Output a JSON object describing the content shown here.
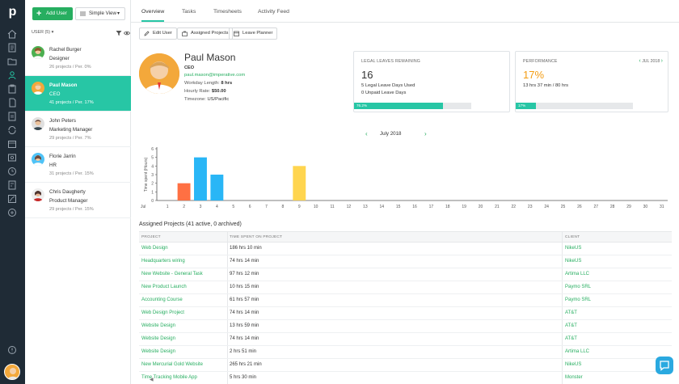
{
  "app": {
    "logo_letter": "p"
  },
  "sidebar": {
    "add_user_label": "Add User",
    "view_label": "Simple View",
    "filter_label": "USER (5)",
    "users": [
      {
        "name": "Rachel Burger",
        "role": "Designer",
        "stats": "26 projects / Per. 0%",
        "selected": false
      },
      {
        "name": "Paul Mason",
        "role": "CEO",
        "stats": "41 projects / Per. 17%",
        "selected": true
      },
      {
        "name": "John Peters",
        "role": "Marketing Manager",
        "stats": "29 projects / Per. 7%",
        "selected": false
      },
      {
        "name": "Florie Jarrin",
        "role": "HR",
        "stats": "31 projects / Per. 15%",
        "selected": false
      },
      {
        "name": "Chris Daugherty",
        "role": "Product Manager",
        "stats": "29 projects / Per. 15%",
        "selected": false
      }
    ],
    "collapse_glyph": "◀"
  },
  "tabs": [
    "Overview",
    "Tasks",
    "Timesheets",
    "Activity Feed"
  ],
  "actions": {
    "edit_user": "Edit User",
    "assigned_projects": "Assigned Projects",
    "leave_planner": "Leave Planner"
  },
  "profile": {
    "name": "Paul Mason",
    "role": "CEO",
    "email": "paul.mason@imperative.com",
    "workday_label": "Workday Length:",
    "workday_value": "8 hrs",
    "rate_label": "Hourly Rate:",
    "rate_value": "$50.00",
    "timezone_label": "Timezone:",
    "timezone_value": "US/Pacific"
  },
  "leaves_card": {
    "title": "LEGAL LEAVES REMAINING",
    "value": "16",
    "line1": "5 Legal Leave Days Used",
    "line2": "0 Unpaid Leave Days",
    "progress_label": "76.2%",
    "progress": 0.762,
    "accent": "#27c6a5"
  },
  "performance_card": {
    "title": "PERFORMANCE",
    "month": "JUL 2018",
    "value": "17%",
    "line1": "13 hrs 37 min / 80 hrs",
    "progress_label": "17%",
    "progress": 0.17,
    "accent": "#f39c12"
  },
  "month_nav": {
    "label": "July 2018",
    "prev": "‹",
    "next": "›"
  },
  "chart_data": {
    "type": "bar",
    "ylabel": "Time spent (Hours)",
    "xlabel": "",
    "month_label": "Jul",
    "categories": [
      "1",
      "2",
      "3",
      "4",
      "5",
      "6",
      "7",
      "8",
      "9",
      "10",
      "11",
      "12",
      "13",
      "14",
      "15",
      "16",
      "17",
      "18",
      "19",
      "20",
      "21",
      "22",
      "23",
      "24",
      "25",
      "26",
      "27",
      "28",
      "29",
      "30",
      "31"
    ],
    "values": [
      0,
      2,
      5,
      3,
      0,
      0,
      0,
      0,
      4,
      0,
      0,
      0,
      0,
      0,
      0,
      0,
      0,
      0,
      0,
      0,
      0,
      0,
      0,
      0,
      0,
      0,
      0,
      0,
      0,
      0,
      0
    ],
    "colors": [
      "#1abc9c",
      "#ff7043",
      "#29b6f6",
      "#29b6f6",
      "#1abc9c",
      "#1abc9c",
      "#1abc9c",
      "#1abc9c",
      "#ffd54f",
      "#1abc9c",
      "#1abc9c",
      "#1abc9c",
      "#1abc9c",
      "#1abc9c",
      "#1abc9c",
      "#1abc9c",
      "#1abc9c",
      "#1abc9c",
      "#1abc9c",
      "#1abc9c",
      "#1abc9c",
      "#1abc9c",
      "#1abc9c",
      "#1abc9c",
      "#1abc9c",
      "#1abc9c",
      "#1abc9c",
      "#1abc9c",
      "#1abc9c",
      "#1abc9c",
      "#1abc9c"
    ],
    "yticks": [
      0,
      1,
      2,
      3,
      4,
      5,
      6
    ],
    "ylim": [
      0,
      6
    ],
    "grid": false
  },
  "projects": {
    "title": "Assigned Projects (41 active, 0 archived)",
    "headers": [
      "PROJECT",
      "TIME SPENT ON PROJECT",
      "CLIENT"
    ],
    "rows": [
      [
        "Web Design",
        "186 hrs 10 min",
        "NikeUS"
      ],
      [
        "Headquarters wiring",
        "74 hrs 14 min",
        "NikeUS"
      ],
      [
        "New Website - General Task",
        "97 hrs 12 min",
        "Artima LLC"
      ],
      [
        "New Product Launch",
        "10 hrs 15 min",
        "Paymo SRL"
      ],
      [
        "Accounting Course",
        "61 hrs 57 min",
        "Paymo SRL"
      ],
      [
        "Web Design Project",
        "74 hrs 14 min",
        "AT&T"
      ],
      [
        "Website Design",
        "13 hrs 59 min",
        "AT&T"
      ],
      [
        "Website Design",
        "74 hrs 14 min",
        "AT&T"
      ],
      [
        "Website Design",
        "2 hrs 51 min",
        "Artima LLC"
      ],
      [
        "New Mercurial Gold Website",
        "265 hrs 21 min",
        "NikeUS"
      ],
      [
        "Time Tracking Mobile App",
        "5 hrs 30 min",
        "Monster"
      ]
    ]
  }
}
